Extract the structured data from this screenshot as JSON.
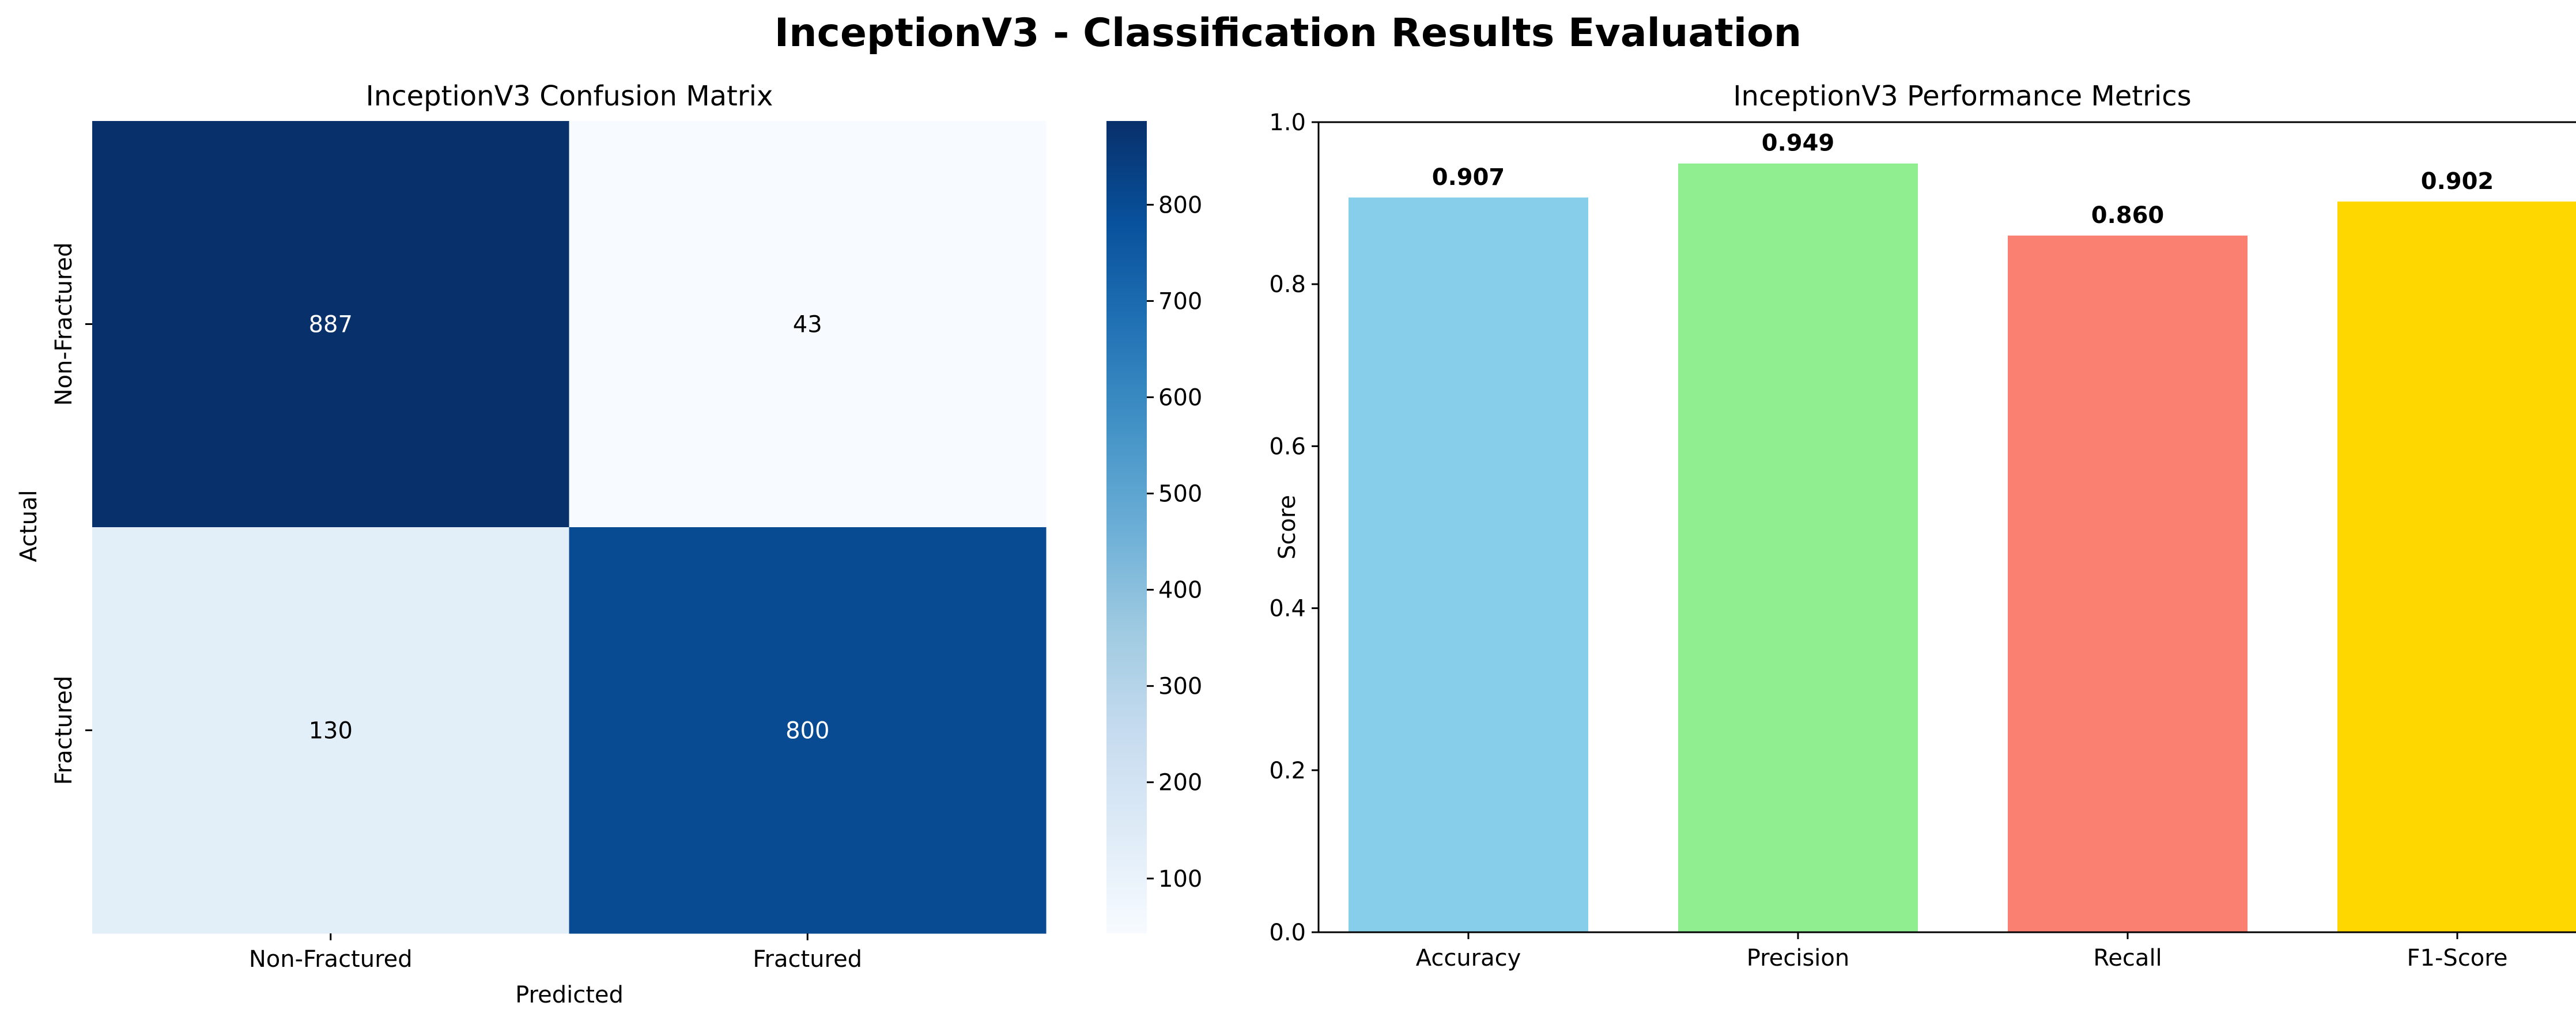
{
  "figure": {
    "title": "InceptionV3 - Classification Results Evaluation"
  },
  "chart_data": [
    {
      "type": "heatmap",
      "title": "InceptionV3 Confusion Matrix",
      "xlabel": "Predicted",
      "ylabel": "Actual",
      "x_categories": [
        "Non-Fractured",
        "Fractured"
      ],
      "y_categories": [
        "Non-Fractured",
        "Fractured"
      ],
      "values": [
        [
          887,
          43
        ],
        [
          130,
          800
        ]
      ],
      "colormap": "Blues",
      "colorbar": {
        "range": [
          43,
          887
        ],
        "ticks": [
          100,
          200,
          300,
          400,
          500,
          600,
          700,
          800
        ],
        "tick_labels": [
          "100",
          "200",
          "300",
          "400",
          "500",
          "600",
          "700",
          "800"
        ]
      }
    },
    {
      "type": "bar",
      "title": "InceptionV3 Performance Metrics",
      "xlabel": "",
      "ylabel": "Score",
      "categories": [
        "Accuracy",
        "Precision",
        "Recall",
        "F1-Score"
      ],
      "values": [
        0.907,
        0.949,
        0.86,
        0.902
      ],
      "value_labels": [
        "0.907",
        "0.949",
        "0.860",
        "0.902"
      ],
      "colors": [
        "#87ceeb",
        "#90ee90",
        "#fa8072",
        "#ffd700"
      ],
      "ylim": [
        0,
        1.0
      ],
      "yticks": [
        0.0,
        0.2,
        0.4,
        0.6,
        0.8,
        1.0
      ],
      "ytick_labels": [
        "0.0",
        "0.2",
        "0.4",
        "0.6",
        "0.8",
        "1.0"
      ],
      "grid": false
    }
  ]
}
